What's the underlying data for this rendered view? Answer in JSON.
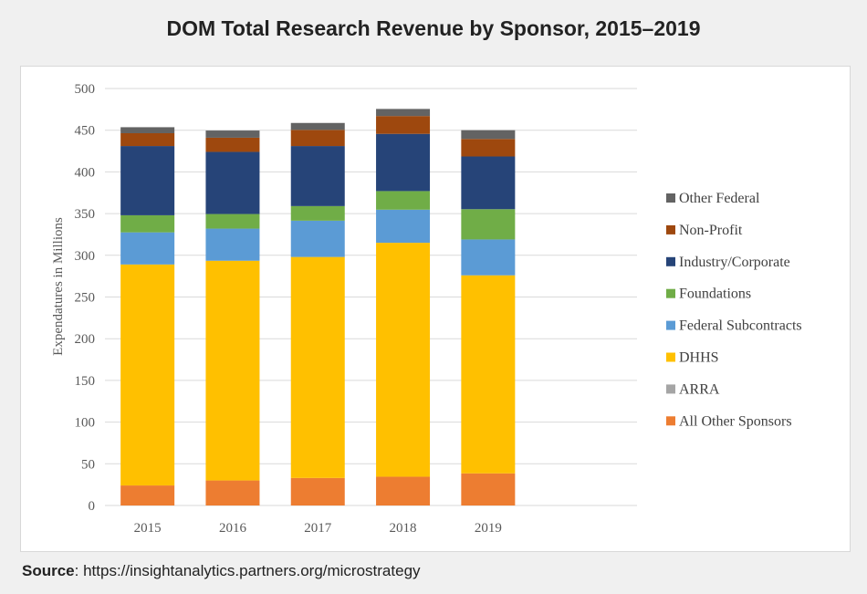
{
  "title": "DOM Total Research Revenue by Sponsor, 2015–2019",
  "source": {
    "label": "Source",
    "text": ": https://insightanalytics.partners.org/microstrategy"
  },
  "chart_data": {
    "type": "bar",
    "stacked": true,
    "title": "DOM Total Research Revenue by Sponsor, 2015–2019",
    "xlabel": "",
    "ylabel": "Expendatures in Millions",
    "ylim": [
      0,
      500
    ],
    "yticks": [
      0,
      50,
      100,
      150,
      200,
      250,
      300,
      350,
      400,
      450,
      500
    ],
    "grid": true,
    "legend": "right",
    "categories": [
      "2015",
      "2016",
      "2017",
      "2018",
      "2019"
    ],
    "series": [
      {
        "name": "All Other Sponsors",
        "color": "#ed7d31",
        "values": [
          24,
          30,
          33,
          34.5,
          38.5
        ]
      },
      {
        "name": "ARRA",
        "color": "#a5a5a5",
        "values": [
          0,
          0,
          0,
          0,
          0
        ]
      },
      {
        "name": "DHHS",
        "color": "#ffc000",
        "values": [
          265,
          263.5,
          265,
          280.5,
          237.5
        ]
      },
      {
        "name": "Federal Subcontracts",
        "color": "#5b9bd5",
        "values": [
          38.5,
          38.5,
          43.5,
          39.7,
          43
        ]
      },
      {
        "name": "Foundations",
        "color": "#70ad47",
        "values": [
          20.5,
          17.5,
          17.5,
          22.3,
          36.3
        ]
      },
      {
        "name": "Industry/Corporate",
        "color": "#264478",
        "values": [
          83,
          74.5,
          72,
          68.6,
          63.2
        ]
      },
      {
        "name": "Non-Profit",
        "color": "#9e480e",
        "values": [
          15.4,
          17,
          19.4,
          21.4,
          21
        ]
      },
      {
        "name": "Other Federal",
        "color": "#636363",
        "values": [
          7.2,
          8.6,
          8.3,
          8.5,
          10.5
        ]
      }
    ]
  }
}
